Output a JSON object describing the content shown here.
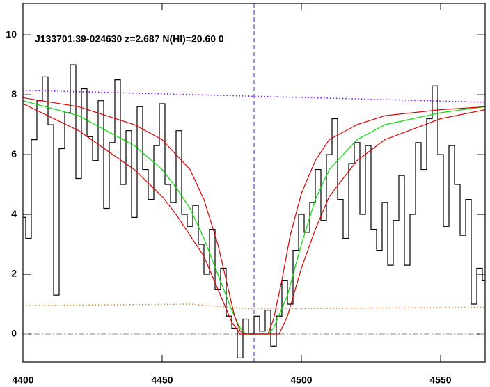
{
  "chart_data": {
    "type": "line",
    "title": "J133701.39-024630 z=2.687 N(HI)=20.60 0",
    "xlim": [
      4400,
      4566
    ],
    "ylim": [
      -0.93,
      11.05
    ],
    "xticks": [
      4400,
      4450,
      4500,
      4550
    ],
    "yticks": [
      0,
      2,
      4,
      6,
      8,
      10
    ],
    "vline": 4483,
    "hline": 0,
    "series": [
      {
        "color": "#000000",
        "style": "steps",
        "x": [
          4400,
          4402,
          4404,
          4406,
          4408,
          4410,
          4412,
          4414,
          4416,
          4418,
          4420,
          4422,
          4424,
          4426,
          4428,
          4430,
          4432,
          4434,
          4436,
          4438,
          4440,
          4442,
          4444,
          4446,
          4448,
          4450,
          4452,
          4454,
          4456,
          4458,
          4460,
          4462,
          4464,
          4466,
          4468,
          4470,
          4472,
          4474,
          4476,
          4478,
          4480,
          4482,
          4484,
          4486,
          4488,
          4490,
          4492,
          4494,
          4496,
          4498,
          4500,
          4502,
          4504,
          4506,
          4508,
          4510,
          4512,
          4514,
          4516,
          4518,
          4520,
          4522,
          4524,
          4526,
          4528,
          4530,
          4532,
          4534,
          4536,
          4538,
          4540,
          4542,
          4544,
          4546,
          4548,
          4550,
          4552,
          4554,
          4556,
          4558,
          4560,
          4562,
          4564,
          4566
        ],
        "values": [
          3.9,
          3.2,
          6.5,
          7.8,
          8.6,
          7.0,
          1.3,
          6.2,
          7.4,
          9.0,
          5.2,
          8.2,
          6.6,
          5.8,
          7.8,
          4.2,
          6.4,
          8.5,
          5.0,
          6.8,
          3.9,
          7.6,
          5.5,
          4.5,
          6.3,
          7.7,
          5.0,
          4.4,
          6.8,
          4.0,
          3.6,
          4.3,
          3.0,
          2.0,
          3.5,
          1.5,
          2.2,
          0.6,
          0.2,
          -0.8,
          0.5,
          0.0,
          0.6,
          0.1,
          0.8,
          -0.4,
          0.6,
          1.8,
          1.0,
          2.8,
          4.0,
          3.4,
          4.4,
          5.5,
          3.8,
          6.0,
          7.2,
          4.5,
          3.2,
          5.7,
          6.4,
          4.0,
          6.3,
          3.5,
          2.8,
          4.4,
          2.3,
          3.8,
          5.3,
          2.3,
          4.0,
          6.4,
          5.5,
          7.2,
          8.3,
          6.0,
          3.6,
          6.3,
          5.0,
          3.3,
          4.5,
          1.0,
          2.2,
          1.8
        ]
      },
      {
        "color": "#00dd00",
        "style": "solid",
        "x": [
          4400,
          4420,
          4440,
          4450,
          4455,
          4460,
          4465,
          4470,
          4475,
          4478,
          4480,
          4488,
          4490,
          4495,
          4500,
          4505,
          4510,
          4520,
          4530,
          4550,
          4566
        ],
        "values": [
          7.8,
          7.3,
          6.3,
          5.5,
          4.9,
          4.2,
          3.2,
          2.0,
          0.8,
          0.2,
          0.0,
          0.0,
          0.2,
          1.3,
          3.0,
          4.5,
          5.5,
          6.5,
          7.0,
          7.4,
          7.6
        ]
      },
      {
        "color": "#dd0000",
        "style": "solid",
        "x": [
          4400,
          4420,
          4440,
          4450,
          4460,
          4465,
          4470,
          4473,
          4476,
          4478,
          4480,
          4488,
          4490,
          4493,
          4496,
          4500,
          4505,
          4510,
          4520,
          4530,
          4550,
          4566
        ],
        "values": [
          7.9,
          7.6,
          7.0,
          6.5,
          5.5,
          4.5,
          3.0,
          1.8,
          0.6,
          0.1,
          0.0,
          0.0,
          0.5,
          1.8,
          3.3,
          4.7,
          5.8,
          6.5,
          7.0,
          7.3,
          7.5,
          7.6
        ]
      },
      {
        "color": "#dd0000",
        "style": "solid",
        "x": [
          4400,
          4420,
          4440,
          4450,
          4455,
          4460,
          4465,
          4470,
          4475,
          4478,
          4492,
          4495,
          4500,
          4505,
          4510,
          4520,
          4530,
          4550,
          4566
        ],
        "values": [
          7.7,
          6.8,
          5.5,
          4.6,
          4.0,
          3.3,
          2.6,
          1.5,
          0.4,
          0.0,
          0.0,
          0.6,
          2.2,
          3.5,
          4.6,
          5.8,
          6.5,
          7.2,
          7.5
        ]
      },
      {
        "color": "#7a00ff",
        "style": "dotted",
        "x": [
          4400,
          4566
        ],
        "values": [
          8.15,
          7.75
        ]
      },
      {
        "color": "#e08a2a",
        "style": "dotted",
        "x": [
          4400,
          4460,
          4480,
          4500,
          4566
        ],
        "values": [
          0.95,
          1.0,
          0.85,
          0.85,
          0.9
        ]
      }
    ]
  }
}
